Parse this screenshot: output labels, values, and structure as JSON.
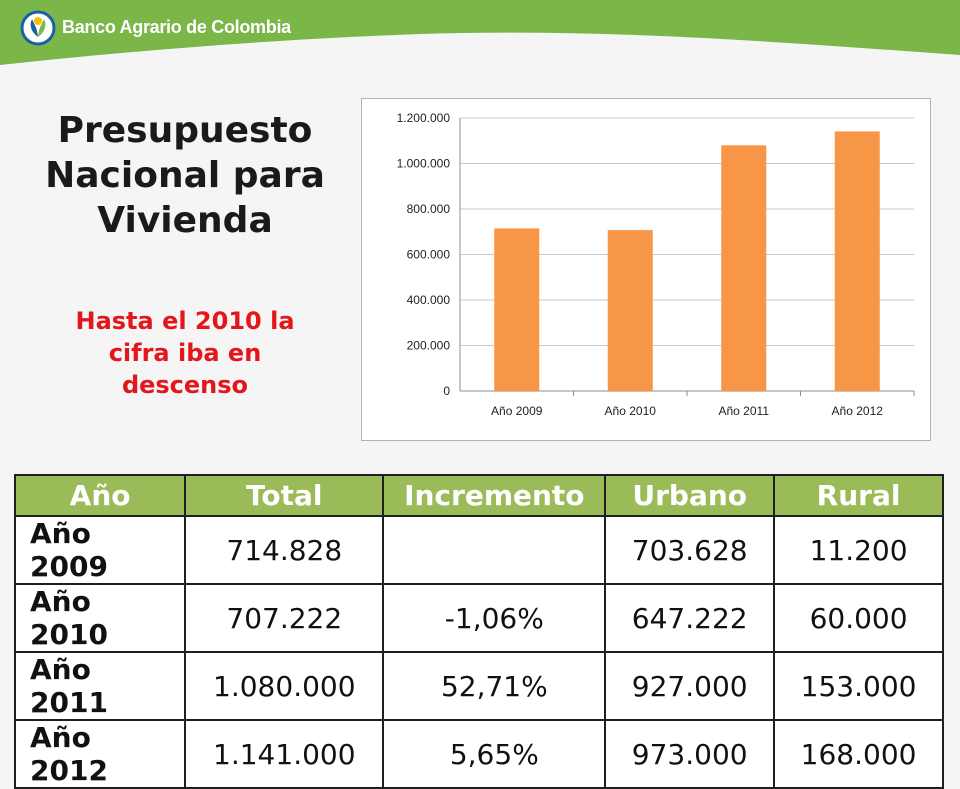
{
  "header": {
    "bank_name": "Banco Agrario de Colombia",
    "colors": {
      "green": "#7ab648",
      "logo_blue": "#1a5fa8",
      "logo_yellow": "#f2c300"
    }
  },
  "slide": {
    "title_lines": [
      "Presupuesto",
      "Nacional para",
      "Vivienda"
    ],
    "subtitle_lines": [
      "Hasta el 2010 la",
      "cifra iba en",
      "descenso"
    ]
  },
  "chart_data": {
    "type": "bar",
    "categories": [
      "Año 2009",
      "Año 2010",
      "Año 2011",
      "Año 2012"
    ],
    "values": [
      714828,
      707222,
      1080000,
      1141000
    ],
    "ylim": [
      0,
      1200000
    ],
    "yticks": [
      0,
      200000,
      400000,
      600000,
      800000,
      1000000,
      1200000
    ],
    "ytick_labels": [
      "0",
      "200.000",
      "400.000",
      "600.000",
      "800.000",
      "1.000.000",
      "1.200.000"
    ],
    "grid": true,
    "legend": "none",
    "bar_color": "#f79646"
  },
  "table": {
    "headers": [
      "Año",
      "Total",
      "Incremento",
      "Urbano",
      "Rural"
    ],
    "rows": [
      [
        "Año 2009",
        "714.828",
        "",
        "703.628",
        "11.200"
      ],
      [
        "Año 2010",
        "707.222",
        "-1,06%",
        "647.222",
        "60.000"
      ],
      [
        "Año 2011",
        "1.080.000",
        "52,71%",
        "927.000",
        "153.000"
      ],
      [
        "Año 2012",
        "1.141.000",
        "5,65%",
        "973.000",
        "168.000"
      ]
    ],
    "header_color": "#9bbb59"
  }
}
